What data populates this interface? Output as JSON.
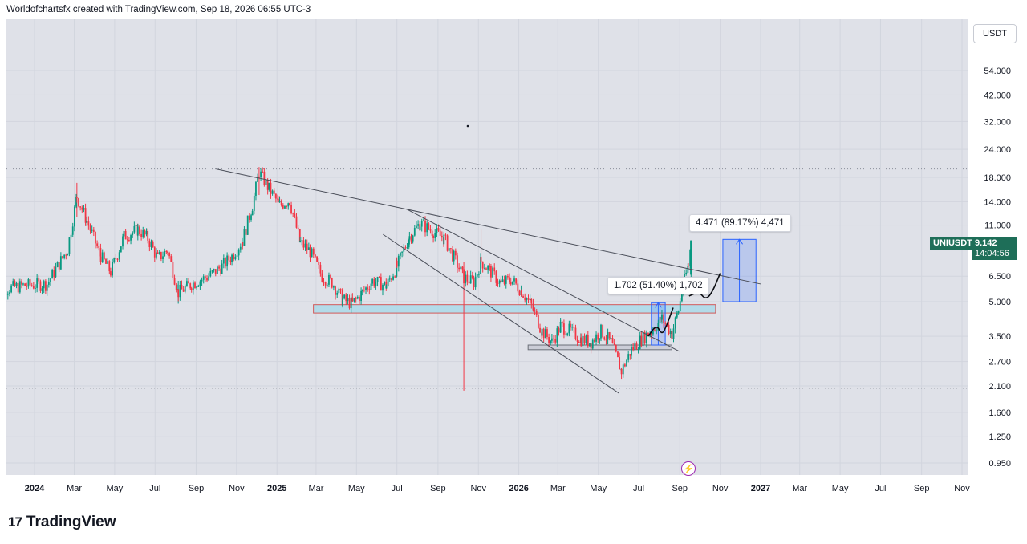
{
  "header": {
    "attribution": "Worldofchartsfx created with TradingView.com, Sep 18, 2026 06:55 UTC-3"
  },
  "currency": "USDT",
  "symbol": {
    "ticker": "UNIUSDT",
    "last_price": "9.142",
    "countdown": "14:04:56"
  },
  "measurements": [
    {
      "label": "1.702 (51.40%) 1,702"
    },
    {
      "label": "4.471 (89.17%) 4,471"
    }
  ],
  "footer": {
    "brand": "TradingView",
    "logo_mark": "17"
  },
  "event_icon": "lightning-icon",
  "colors": {
    "up": "#089981",
    "down": "#f23645",
    "background": "#dfe1e8",
    "zone": "#abd9e9",
    "measure": "#2962ff",
    "price_tag": "#1e6e58"
  },
  "chart_data": {
    "type": "candlestick",
    "symbol": "UNIUSDT",
    "scale": "log",
    "y_ticks": [
      54.0,
      42.0,
      32.0,
      24.0,
      18.0,
      14.0,
      11.0,
      6.5,
      5.0,
      3.5,
      2.7,
      2.1,
      1.6,
      1.25,
      0.95
    ],
    "y_tick_labels": [
      "54.000",
      "42.000",
      "32.000",
      "24.000",
      "18.000",
      "14.000",
      "11.000",
      "6.500",
      "5.000",
      "3.500",
      "2.700",
      "2.100",
      "1.600",
      "1.250",
      "0.950"
    ],
    "x_ticks": [
      "2024",
      "Mar",
      "May",
      "Jul",
      "Sep",
      "Nov",
      "2025",
      "Mar",
      "May",
      "Jul",
      "Sep",
      "Nov",
      "2026",
      "Mar",
      "May",
      "Jul",
      "Sep",
      "Nov",
      "2027",
      "Mar",
      "May",
      "Jul",
      "Sep",
      "Nov"
    ],
    "x_tick_dates": [
      "2024-01-01",
      "2024-03-01",
      "2024-05-01",
      "2024-07-01",
      "2024-09-01",
      "2024-11-01",
      "2025-01-01",
      "2025-03-01",
      "2025-05-01",
      "2025-07-01",
      "2025-09-01",
      "2025-11-01",
      "2026-01-01",
      "2026-03-01",
      "2026-05-01",
      "2026-07-01",
      "2026-09-01",
      "2026-11-01",
      "2027-01-01",
      "2027-03-01",
      "2027-05-01",
      "2027-07-01",
      "2027-09-01",
      "2027-11-01"
    ],
    "bold_ticks": [
      "2024",
      "2025",
      "2026",
      "2027"
    ],
    "horizontal_levels": [
      19.6,
      2.05
    ],
    "price_path": [
      [
        "2023-11-01",
        5.6
      ],
      [
        "2023-12-15",
        5.9
      ],
      [
        "2024-01-20",
        6.0
      ],
      [
        "2024-02-20",
        8.6
      ],
      [
        "2024-03-05",
        14.8
      ],
      [
        "2024-03-20",
        11.5
      ],
      [
        "2024-04-10",
        8.0
      ],
      [
        "2024-04-25",
        6.8
      ],
      [
        "2024-05-15",
        9.8
      ],
      [
        "2024-06-05",
        10.5
      ],
      [
        "2024-06-20",
        9.6
      ],
      [
        "2024-07-05",
        7.8
      ],
      [
        "2024-07-20",
        8.5
      ],
      [
        "2024-08-05",
        5.5
      ],
      [
        "2024-08-25",
        6.0
      ],
      [
        "2024-09-20",
        6.5
      ],
      [
        "2024-10-10",
        7.2
      ],
      [
        "2024-10-25",
        8.0
      ],
      [
        "2024-11-10",
        9.4
      ],
      [
        "2024-11-25",
        13.5
      ],
      [
        "2024-12-05",
        19.0
      ],
      [
        "2024-12-20",
        16.0
      ],
      [
        "2025-01-05",
        13.5
      ],
      [
        "2025-01-20",
        14.2
      ],
      [
        "2025-02-05",
        9.2
      ],
      [
        "2025-02-20",
        8.4
      ],
      [
        "2025-03-10",
        6.5
      ],
      [
        "2025-03-25",
        6.1
      ],
      [
        "2025-04-10",
        5.1
      ],
      [
        "2025-04-25",
        4.9
      ],
      [
        "2025-05-10",
        5.5
      ],
      [
        "2025-05-25",
        6.2
      ],
      [
        "2025-06-15",
        5.9
      ],
      [
        "2025-07-01",
        7.2
      ],
      [
        "2025-07-20",
        9.8
      ],
      [
        "2025-08-05",
        11.2
      ],
      [
        "2025-08-25",
        10.3
      ],
      [
        "2025-09-10",
        9.6
      ],
      [
        "2025-09-25",
        7.9
      ],
      [
        "2025-10-10",
        6.4
      ],
      [
        "2025-10-25",
        6.1
      ],
      [
        "2025-11-05",
        7.6
      ],
      [
        "2025-11-20",
        6.8
      ],
      [
        "2025-12-05",
        6.0
      ],
      [
        "2025-12-20",
        6.3
      ],
      [
        "2026-01-05",
        5.6
      ],
      [
        "2026-01-20",
        4.8
      ],
      [
        "2026-02-05",
        3.7
      ],
      [
        "2026-02-20",
        3.3
      ],
      [
        "2026-03-05",
        3.9
      ],
      [
        "2026-03-20",
        3.7
      ],
      [
        "2026-04-05",
        3.4
      ],
      [
        "2026-04-20",
        3.3
      ],
      [
        "2026-05-05",
        3.7
      ],
      [
        "2026-05-20",
        3.3
      ],
      [
        "2026-06-05",
        2.45
      ],
      [
        "2026-06-20",
        3.05
      ],
      [
        "2026-07-05",
        3.4
      ],
      [
        "2026-07-20",
        3.7
      ],
      [
        "2026-08-05",
        4.2
      ],
      [
        "2026-08-20",
        3.6
      ],
      [
        "2026-08-30",
        4.6
      ],
      [
        "2026-09-08",
        6.2
      ],
      [
        "2026-09-14",
        7.3
      ],
      [
        "2026-09-18",
        9.142
      ]
    ],
    "spikes": [
      [
        "2025-10-10",
        7.5,
        2.0
      ],
      [
        "2025-11-05",
        10.5,
        6.4
      ],
      [
        "2024-08-05",
        6.2,
        4.9
      ],
      [
        "2024-03-05",
        17.0,
        12.0
      ],
      [
        "2024-12-05",
        20.0,
        15.0
      ]
    ],
    "trendlines": [
      [
        [
          "2024-10-01",
          19.6
        ],
        [
          "2027-01-01",
          6.0
        ]
      ],
      [
        [
          "2025-07-15",
          13.0
        ],
        [
          "2026-08-31",
          3.0
        ]
      ],
      [
        [
          "2025-06-10",
          10.0
        ],
        [
          "2026-06-01",
          1.95
        ]
      ]
    ],
    "zones": [
      {
        "x1": "2025-02-25",
        "x2": "2026-10-25",
        "y1": 4.85,
        "y2": 4.45
      },
      {
        "x1": "2026-01-15",
        "x2": "2026-08-20",
        "y1": 3.2,
        "y2": 3.05
      }
    ],
    "measure_boxes": [
      {
        "x1": "2026-07-20",
        "x2": "2026-08-10",
        "y1": 3.2,
        "y2": 4.95
      },
      {
        "x1": "2026-11-05",
        "x2": "2026-12-25",
        "y1": 5.0,
        "y2": 9.5
      }
    ],
    "projection_path": [
      [
        "2026-07-15",
        3.5
      ],
      [
        "2026-07-28",
        3.95
      ],
      [
        "2026-08-05",
        3.55
      ],
      [
        "2026-08-12",
        3.9
      ],
      [
        "2026-08-22",
        4.7
      ]
    ],
    "projection_path_2": [
      [
        "2026-09-15",
        5.3
      ],
      [
        "2026-09-30",
        5.55
      ],
      [
        "2026-10-10",
        5.1
      ],
      [
        "2026-10-20",
        5.5
      ],
      [
        "2026-11-01",
        6.7
      ]
    ],
    "measure_anchors": [
      [
        "2026-07-12",
        "2026-08-12",
        5.7
      ],
      [
        "2026-09-10",
        "2026-12-30",
        10.9
      ]
    ]
  }
}
